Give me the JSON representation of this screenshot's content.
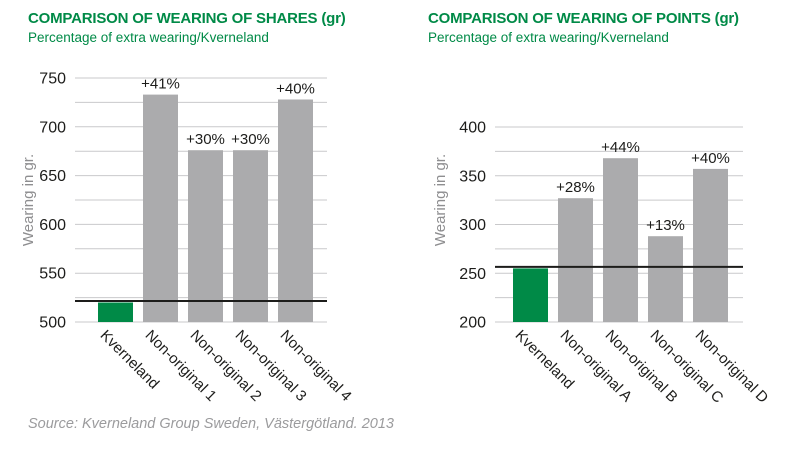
{
  "source": "Source: Kverneland Group Sweden, Västergötland. 2013",
  "colors": {
    "brand_green": "#008a47",
    "bar_gray": "#ababad",
    "gridline": "#c9c9cb",
    "dark_text": "#1d1d1b",
    "axis_label_gray": "#8e8e90",
    "reference_line": "#1d1d1b"
  },
  "chart_data": [
    {
      "type": "bar",
      "title": "COMPARISON OF WEARING OF SHARES (gr)",
      "subtitle": "Percentage of extra wearing/Kverneland",
      "ylabel": "Wearing in gr.",
      "xlabel": "",
      "ylim": [
        500,
        750
      ],
      "ytick_major": 50,
      "ytick_minor": 25,
      "grid": true,
      "legend": "none",
      "categories": [
        "Kverneland",
        "Non-original 1",
        "Non-original 2",
        "Non-original 3",
        "Non-original 4"
      ],
      "values": [
        520,
        733,
        676,
        676,
        728
      ],
      "bar_labels": [
        "",
        "+41%",
        "+30%",
        "+30%",
        "+40%"
      ],
      "highlight_index": 0,
      "reference_line": 520
    },
    {
      "type": "bar",
      "title": "COMPARISON OF WEARING OF POINTS (gr)",
      "subtitle": "Percentage of extra wearing/Kverneland",
      "ylabel": "Wearing in gr.",
      "xlabel": "",
      "ylim": [
        200,
        400
      ],
      "ytick_major": 50,
      "ytick_minor": 25,
      "grid": true,
      "legend": "none",
      "categories": [
        "Kverneland",
        "Non-original A",
        "Non-original B",
        "Non-original C",
        "Non-original D"
      ],
      "values": [
        255,
        327,
        368,
        288,
        357
      ],
      "bar_labels": [
        "",
        "+28%",
        "+44%",
        "+13%",
        "+40%"
      ],
      "highlight_index": 0,
      "reference_line": 255
    }
  ]
}
